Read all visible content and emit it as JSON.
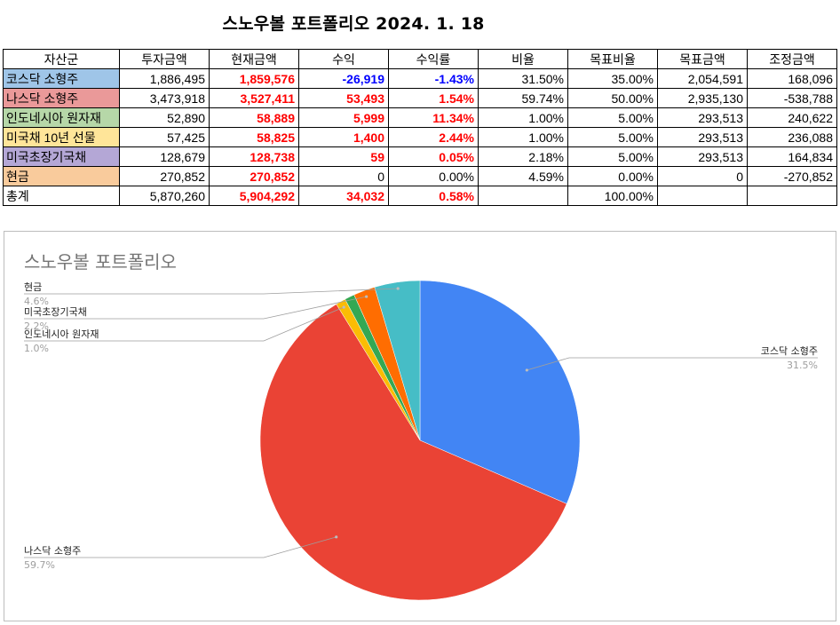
{
  "title": "스노우볼 포트폴리오 2024. 1. 18",
  "table": {
    "headers": [
      "자산군",
      "투자금액",
      "현재금액",
      "수익",
      "수익률",
      "비율",
      "목표비율",
      "목표금액",
      "조정금액"
    ],
    "rows": [
      {
        "name": "코스닥 소형주",
        "color": "#9fc5e8",
        "invest": "1,886,495",
        "current": "1,859,576",
        "profit": "-26,919",
        "rate": "-1.43%",
        "ratio": "31.50%",
        "target_ratio": "35.00%",
        "target_amount": "2,054,591",
        "adjust": "168,096",
        "sign": "neg"
      },
      {
        "name": "나스닥 소형주",
        "color": "#ea9999",
        "invest": "3,473,918",
        "current": "3,527,411",
        "profit": "53,493",
        "rate": "1.54%",
        "ratio": "59.74%",
        "target_ratio": "50.00%",
        "target_amount": "2,935,130",
        "adjust": "-538,788",
        "sign": "pos"
      },
      {
        "name": "인도네시아 원자재",
        "color": "#b6d7a8",
        "invest": "52,890",
        "current": "58,889",
        "profit": "5,999",
        "rate": "11.34%",
        "ratio": "1.00%",
        "target_ratio": "5.00%",
        "target_amount": "293,513",
        "adjust": "240,622",
        "sign": "pos"
      },
      {
        "name": "미국채 10년 선물",
        "color": "#ffe599",
        "invest": "57,425",
        "current": "58,825",
        "profit": "1,400",
        "rate": "2.44%",
        "ratio": "1.00%",
        "target_ratio": "5.00%",
        "target_amount": "293,513",
        "adjust": "236,088",
        "sign": "pos"
      },
      {
        "name": "미국초장기국채",
        "color": "#b4a7d6",
        "invest": "128,679",
        "current": "128,738",
        "profit": "59",
        "rate": "0.05%",
        "ratio": "2.18%",
        "target_ratio": "5.00%",
        "target_amount": "293,513",
        "adjust": "164,834",
        "sign": "pos"
      },
      {
        "name": "현금",
        "color": "#f9cb9c",
        "invest": "270,852",
        "current": "270,852",
        "profit": "0",
        "rate": "0.00%",
        "ratio": "4.59%",
        "target_ratio": "0.00%",
        "target_amount": "0",
        "adjust": "-270,852",
        "sign": "zero"
      }
    ],
    "total": {
      "name": "총계",
      "invest": "5,870,260",
      "current": "5,904,292",
      "profit": "34,032",
      "rate": "0.58%",
      "ratio": "",
      "target_ratio": "100.00%",
      "target_amount": "",
      "adjust": ""
    }
  },
  "chart_data": {
    "type": "pie",
    "title": "스노우볼 포트폴리오",
    "start_angle_deg": 0,
    "direction": "clockwise",
    "slices": [
      {
        "name": "코스닥 소형주",
        "value": 31.5,
        "label": "31.5%",
        "color": "#4285f4",
        "labeled": true,
        "side": "right"
      },
      {
        "name": "나스닥 소형주",
        "value": 59.74,
        "label": "59.7%",
        "color": "#ea4335",
        "labeled": true,
        "side": "left"
      },
      {
        "name": "인도네시아 원자재",
        "value": 1.0,
        "label": "1.0%",
        "color": "#fbbc04",
        "labeled": true,
        "side": "left"
      },
      {
        "name": "미국채 10년 선물",
        "value": 1.0,
        "label": "",
        "color": "#34a853",
        "labeled": false,
        "side": "left"
      },
      {
        "name": "미국초장기국채",
        "value": 2.18,
        "label": "2.2%",
        "color": "#ff6d01",
        "labeled": true,
        "side": "left"
      },
      {
        "name": "현금",
        "value": 4.59,
        "label": "4.6%",
        "color": "#46bdc6",
        "labeled": true,
        "side": "left"
      }
    ]
  }
}
